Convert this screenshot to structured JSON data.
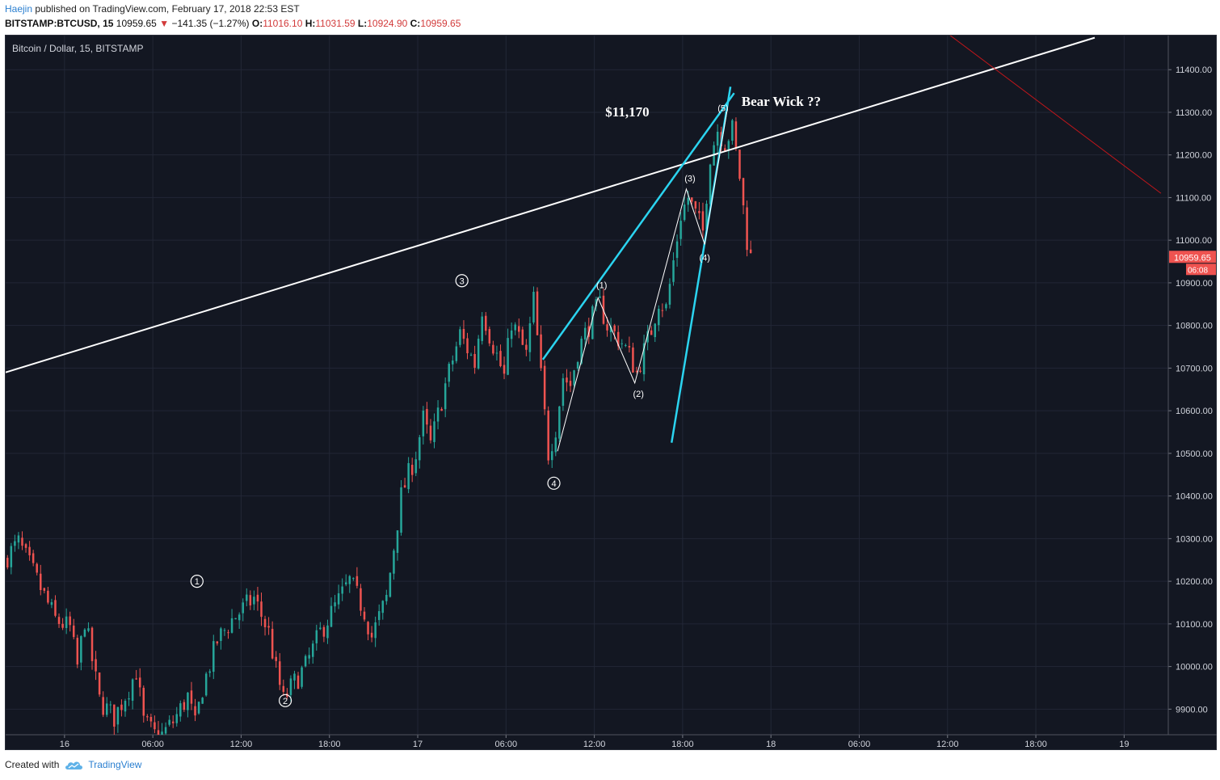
{
  "header": {
    "author": "Haejin",
    "published_text": "published on TradingView.com, February 17, 2018 22:53 EST",
    "symbol": "BITSTAMP:BTCUSD, 15",
    "last_price": "10959.65",
    "change": "−141.35 (−1.27%)",
    "o_label": "O:",
    "o_value": "11016.10",
    "h_label": "H:",
    "h_value": "11031.59",
    "l_label": "L:",
    "l_value": "10924.90",
    "c_label": "C:",
    "c_value": "10959.65"
  },
  "chart_title": "Bitcoin / Dollar, 15, BITSTAMP",
  "footer": {
    "created_with": "Created with",
    "brand": "TradingView",
    "brand_icon": "tradingview-cloud-icon"
  },
  "colors": {
    "background": "#131722",
    "grid": "#222736",
    "up": "#26a69a",
    "down": "#ef5350",
    "trend_white": "#ffffff",
    "trend_cyan": "#2bd4f0",
    "trend_red": "#c0161b",
    "price_tag": "#ef5350"
  },
  "chart_data": {
    "type": "candlestick",
    "interval_minutes": 15,
    "title": "Bitcoin / Dollar, 15, BITSTAMP",
    "ylim": [
      9840,
      11480
    ],
    "y_ticks": [
      9900,
      10000,
      10100,
      10200,
      10300,
      10400,
      10500,
      10600,
      10700,
      10800,
      10900,
      11000,
      11100,
      11200,
      11300,
      11400
    ],
    "y_tick_labels": [
      "9900.00",
      "10000.00",
      "10100.00",
      "10200.00",
      "10300.00",
      "10400.00",
      "10500.00",
      "10600.00",
      "10700.00",
      "10800.00",
      "10900.00",
      "11000.00",
      "11100.00",
      "11200.00",
      "11300.00",
      "11400.00"
    ],
    "x_range": [
      "2018-02-15 20:00",
      "2018-02-19 03:00"
    ],
    "x_ticks": [
      "2018-02-16 00:00",
      "2018-02-16 06:00",
      "2018-02-16 12:00",
      "2018-02-16 18:00",
      "2018-02-17 00:00",
      "2018-02-17 06:00",
      "2018-02-17 12:00",
      "2018-02-17 18:00",
      "2018-02-18 00:00",
      "2018-02-18 06:00",
      "2018-02-18 12:00",
      "2018-02-18 18:00",
      "2018-02-19 00:00"
    ],
    "x_tick_labels": [
      "16",
      "06:00",
      "12:00",
      "18:00",
      "17",
      "06:00",
      "12:00",
      "18:00",
      "18",
      "06:00",
      "12:00",
      "18:00",
      "19"
    ],
    "last_price_label": "10959.65",
    "countdown_label": "06:08",
    "path": [
      [
        "2018-02-15 20:00",
        10250
      ],
      [
        "2018-02-15 21:00",
        10290
      ],
      [
        "2018-02-15 22:00",
        10220
      ],
      [
        "2018-02-15 23:30",
        10110
      ],
      [
        "2018-02-16 00:30",
        10090
      ],
      [
        "2018-02-16 01:00",
        10000
      ],
      [
        "2018-02-16 01:30",
        10110
      ],
      [
        "2018-02-16 02:30",
        9920
      ],
      [
        "2018-02-16 03:30",
        9880
      ],
      [
        "2018-02-16 04:30",
        9950
      ],
      [
        "2018-02-16 05:00",
        9990
      ],
      [
        "2018-02-16 05:30",
        9870
      ],
      [
        "2018-02-16 06:30",
        9830
      ],
      [
        "2018-02-16 07:30",
        9870
      ],
      [
        "2018-02-16 08:30",
        9930
      ],
      [
        "2018-02-16 09:00",
        9860
      ],
      [
        "2018-02-16 09:30",
        9950
      ],
      [
        "2018-02-16 10:30",
        10060
      ],
      [
        "2018-02-16 11:30",
        10110
      ],
      [
        "2018-02-16 13:00",
        10160
      ],
      [
        "2018-02-16 14:00",
        10080
      ],
      [
        "2018-02-16 14:30",
        9990
      ],
      [
        "2018-02-16 15:00",
        9920
      ],
      [
        "2018-02-16 15:30",
        9950
      ],
      [
        "2018-02-16 16:30",
        10000
      ],
      [
        "2018-02-16 17:30",
        10080
      ],
      [
        "2018-02-16 18:30",
        10140
      ],
      [
        "2018-02-16 19:30",
        10200
      ],
      [
        "2018-02-16 20:30",
        10130
      ],
      [
        "2018-02-16 21:00",
        10070
      ],
      [
        "2018-02-16 22:00",
        10160
      ],
      [
        "2018-02-16 23:00",
        10400
      ],
      [
        "2018-02-16 23:30",
        10450
      ],
      [
        "2018-02-17 00:00",
        10500
      ],
      [
        "2018-02-17 00:30",
        10580
      ],
      [
        "2018-02-17 01:00",
        10520
      ],
      [
        "2018-02-17 02:00",
        10660
      ],
      [
        "2018-02-17 03:00",
        10780
      ],
      [
        "2018-02-17 04:00",
        10710
      ],
      [
        "2018-02-17 04:30",
        10840
      ],
      [
        "2018-02-17 05:00",
        10780
      ],
      [
        "2018-02-17 06:00",
        10680
      ],
      [
        "2018-02-17 06:30",
        10810
      ],
      [
        "2018-02-17 07:30",
        10730
      ],
      [
        "2018-02-17 08:00",
        10860
      ],
      [
        "2018-02-17 08:30",
        10680
      ],
      [
        "2018-02-17 09:00",
        10500
      ],
      [
        "2018-02-17 09:30",
        10560
      ],
      [
        "2018-02-17 10:00",
        10680
      ],
      [
        "2018-02-17 10:30",
        10660
      ],
      [
        "2018-02-17 11:00",
        10740
      ],
      [
        "2018-02-17 11:30",
        10780
      ],
      [
        "2018-02-17 12:00",
        10820
      ],
      [
        "2018-02-17 12:30",
        10850
      ],
      [
        "2018-02-17 13:00",
        10800
      ],
      [
        "2018-02-17 14:00",
        10760
      ],
      [
        "2018-02-17 14:30",
        10730
      ],
      [
        "2018-02-17 15:00",
        10690
      ],
      [
        "2018-02-17 15:30",
        10740
      ],
      [
        "2018-02-17 16:00",
        10790
      ],
      [
        "2018-02-17 16:30",
        10860
      ],
      [
        "2018-02-17 17:00",
        10840
      ],
      [
        "2018-02-17 17:30",
        10950
      ],
      [
        "2018-02-17 18:00",
        11060
      ],
      [
        "2018-02-17 18:30",
        11100
      ],
      [
        "2018-02-17 19:00",
        11060
      ],
      [
        "2018-02-17 19:30",
        11020
      ],
      [
        "2018-02-17 20:00",
        11200
      ],
      [
        "2018-02-17 20:30",
        11260
      ],
      [
        "2018-02-17 21:00",
        11230
      ],
      [
        "2018-02-17 21:30",
        11260
      ],
      [
        "2018-02-17 22:00",
        11150
      ],
      [
        "2018-02-17 22:30",
        11000
      ],
      [
        "2018-02-17 22:45",
        10960
      ]
    ],
    "wave_labels": [
      {
        "label": "1",
        "circled": true,
        "x": "2018-02-16 09:00",
        "y": 10200
      },
      {
        "label": "2",
        "circled": true,
        "x": "2018-02-16 15:00",
        "y": 9920
      },
      {
        "label": "3",
        "circled": true,
        "x": "2018-02-17 03:00",
        "y": 10905
      },
      {
        "label": "4",
        "circled": true,
        "x": "2018-02-17 09:15",
        "y": 10430
      },
      {
        "label": "(1)",
        "circled": false,
        "x": "2018-02-17 12:30",
        "y": 10895
      },
      {
        "label": "(2)",
        "circled": false,
        "x": "2018-02-17 15:00",
        "y": 10640
      },
      {
        "label": "(3)",
        "circled": false,
        "x": "2018-02-17 18:30",
        "y": 11145
      },
      {
        "label": "(4)",
        "circled": false,
        "x": "2018-02-17 19:30",
        "y": 10960
      },
      {
        "label": "(5)",
        "circled": false,
        "x": "2018-02-17 20:45",
        "y": 11310
      }
    ],
    "wave_path": [
      [
        "2018-02-17 09:30",
        10505
      ],
      [
        "2018-02-17 12:15",
        10865
      ],
      [
        "2018-02-17 14:45",
        10665
      ],
      [
        "2018-02-17 18:15",
        11120
      ],
      [
        "2018-02-17 19:30",
        10990
      ],
      [
        "2018-02-17 21:00",
        11300
      ]
    ],
    "annotations": [
      {
        "text": "$11,170",
        "x": "2018-02-17 12:45",
        "y": 11290
      },
      {
        "text": "Bear Wick ??",
        "x": "2018-02-17 22:00",
        "y": 11315
      }
    ],
    "trendlines": [
      {
        "color": "white",
        "from": [
          "2018-02-15 20:00",
          10690
        ],
        "to": [
          "2018-02-18 22:00",
          11475
        ]
      },
      {
        "color": "cyan",
        "from": [
          "2018-02-17 08:30",
          10720
        ],
        "to": [
          "2018-02-17 21:30",
          11345
        ]
      },
      {
        "color": "cyan",
        "from": [
          "2018-02-17 17:15",
          10525
        ],
        "to": [
          "2018-02-17 21:15",
          11360
        ]
      },
      {
        "color": "red",
        "from": [
          "2018-02-18 12:00",
          11485
        ],
        "to": [
          "2018-02-19 02:30",
          11110
        ]
      }
    ]
  }
}
